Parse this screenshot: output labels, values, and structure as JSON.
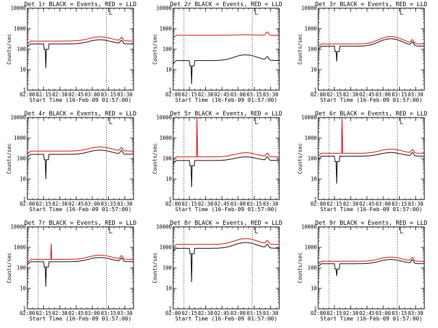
{
  "chart_data": [
    {
      "type": "line",
      "title": "Det 1r BLACK = Events, RED = LLD",
      "xlabel": "Start Time (16-Feb-09 01:57:00)",
      "ylabel": "Counts/sec",
      "yscale": "log",
      "ylim": [
        1,
        10000
      ],
      "xtick_labels": [
        "02:00",
        "02:15",
        "02:30",
        "02:45",
        "03:00",
        "03:15",
        "03:30"
      ],
      "ytick_labels": [
        "1",
        "10",
        "100",
        "1000",
        "10000"
      ],
      "series": [
        {
          "color": "#000000",
          "base": 180,
          "bump": 1.6,
          "dip": 12,
          "spike": null
        },
        {
          "color": "#dd0000",
          "base": 250,
          "bump": 1.6,
          "dip": null,
          "spike": null
        }
      ]
    },
    {
      "type": "line",
      "title": "Det 2r BLACK = Events, RED = LLD",
      "xlabel": "Start Time (16-Feb-09 01:57:00)",
      "ylabel": "Counts/sec",
      "yscale": "log",
      "ylim": [
        1,
        10000
      ],
      "xtick_labels": [
        "02:00",
        "02:15",
        "02:30",
        "02:45",
        "03:00",
        "03:15",
        "03:30"
      ],
      "ytick_labels": [
        "1",
        "10",
        "100",
        "1000",
        "10000"
      ],
      "series": [
        {
          "color": "#000000",
          "base": 28,
          "bump": 1.9,
          "dip": 2,
          "spike": null
        },
        {
          "color": "#dd0000",
          "base": 480,
          "bump": 1.05,
          "dip": null,
          "spike": null
        }
      ]
    },
    {
      "type": "line",
      "title": "Det 3r BLACK = Events, RED = LLD",
      "xlabel": "Start Time (16-Feb-09 01:57:00)",
      "ylabel": "Counts/sec",
      "yscale": "log",
      "ylim": [
        1,
        10000
      ],
      "xtick_labels": [
        "02:00",
        "02:15",
        "02:30",
        "02:45",
        "03:00",
        "03:15",
        "03:30"
      ],
      "ytick_labels": [
        "1",
        "10",
        "100",
        "1000",
        "10000"
      ],
      "series": [
        {
          "color": "#000000",
          "base": 140,
          "bump": 2.3,
          "dip": 25,
          "spike": null
        },
        {
          "color": "#dd0000",
          "base": 180,
          "bump": 2.3,
          "dip": null,
          "spike": null
        }
      ]
    },
    {
      "type": "line",
      "title": "Det 4r BLACK = Events, RED = LLD",
      "xlabel": "Start Time (16-Feb-09 01:57:00)",
      "ylabel": "Counts/sec",
      "yscale": "log",
      "ylim": [
        1,
        10000
      ],
      "xtick_labels": [
        "02:00",
        "02:15",
        "02:30",
        "02:45",
        "03:00",
        "03:15",
        "03:30"
      ],
      "ytick_labels": [
        "1",
        "10",
        "100",
        "1000",
        "10000"
      ],
      "series": [
        {
          "color": "#000000",
          "base": 160,
          "bump": 1.6,
          "dip": 10,
          "spike": null
        },
        {
          "color": "#dd0000",
          "base": 230,
          "bump": 1.6,
          "dip": null,
          "spike": null
        }
      ]
    },
    {
      "type": "line",
      "title": "Det 5r BLACK = Events, RED = LLD",
      "xlabel": "Start Time (16-Feb-09 01:57:00)",
      "ylabel": "Counts/sec",
      "yscale": "log",
      "ylim": [
        1,
        10000
      ],
      "xtick_labels": [
        "02:00",
        "02:15",
        "02:30",
        "02:45",
        "03:00",
        "03:15",
        "03:30"
      ],
      "ytick_labels": [
        "1",
        "10",
        "100",
        "1000",
        "10000"
      ],
      "series": [
        {
          "color": "#000000",
          "base": 80,
          "bump": 1.5,
          "dip": 4,
          "spike": null
        },
        {
          "color": "#dd0000",
          "base": 120,
          "bump": 1.6,
          "dip": null,
          "spike": 10000
        }
      ]
    },
    {
      "type": "line",
      "title": "Det 6r BLACK = Events, RED = LLD",
      "xlabel": "Start Time (16-Feb-09 01:57:00)",
      "ylabel": "Counts/sec",
      "yscale": "log",
      "ylim": [
        1,
        10000
      ],
      "xtick_labels": [
        "02:00",
        "02:15",
        "02:30",
        "02:45",
        "03:00",
        "03:15",
        "03:30"
      ],
      "ytick_labels": [
        "1",
        "10",
        "100",
        "1000",
        "10000"
      ],
      "series": [
        {
          "color": "#000000",
          "base": 130,
          "bump": 1.5,
          "dip": 6,
          "spike": null
        },
        {
          "color": "#dd0000",
          "base": 180,
          "bump": 1.6,
          "dip": null,
          "spike": 10000
        }
      ]
    },
    {
      "type": "line",
      "title": "Det 7r BLACK = Events, RED = LLD",
      "xlabel": "Start Time (16-Feb-09 01:57:00)",
      "ylabel": "Counts/sec",
      "yscale": "log",
      "ylim": [
        1,
        10000
      ],
      "xtick_labels": [
        "02:00",
        "02:15",
        "02:30",
        "02:45",
        "03:00",
        "03:15",
        "03:30"
      ],
      "ytick_labels": [
        "1",
        "10",
        "100",
        "1000",
        "10000"
      ],
      "series": [
        {
          "color": "#000000",
          "base": 200,
          "bump": 1.6,
          "dip": 12,
          "spike": null
        },
        {
          "color": "#dd0000",
          "base": 260,
          "bump": 1.6,
          "dip": null,
          "spike": 1500
        }
      ]
    },
    {
      "type": "line",
      "title": "Det 8r BLACK = Events, RED = LLD",
      "xlabel": "Start Time (16-Feb-09 01:57:00)",
      "ylabel": "Counts/sec",
      "yscale": "log",
      "ylim": [
        1,
        10000
      ],
      "xtick_labels": [
        "02:00",
        "02:15",
        "02:30",
        "02:45",
        "03:00",
        "03:15",
        "03:30"
      ],
      "ytick_labels": [
        "1",
        "10",
        "100",
        "1000",
        "10000"
      ],
      "series": [
        {
          "color": "#000000",
          "base": 900,
          "bump": 1.9,
          "dip": 20,
          "spike": null
        },
        {
          "color": "#dd0000",
          "base": 1400,
          "bump": 1.9,
          "dip": null,
          "spike": null
        }
      ]
    },
    {
      "type": "line",
      "title": "Det 9r BLACK = Events, RED = LLD",
      "xlabel": "Start Time (16-Feb-09 01:57:00)",
      "ylabel": "Counts/sec",
      "yscale": "log",
      "ylim": [
        1,
        10000
      ],
      "xtick_labels": [
        "02:00",
        "02:15",
        "02:30",
        "02:45",
        "03:00",
        "03:15",
        "03:30"
      ],
      "ytick_labels": [
        "1",
        "10",
        "100",
        "1000",
        "10000"
      ],
      "series": [
        {
          "color": "#000000",
          "base": 160,
          "bump": 1.6,
          "dip": 40,
          "spike": null
        },
        {
          "color": "#dd0000",
          "base": 210,
          "bump": 1.6,
          "dip": null,
          "spike": null
        }
      ]
    }
  ]
}
